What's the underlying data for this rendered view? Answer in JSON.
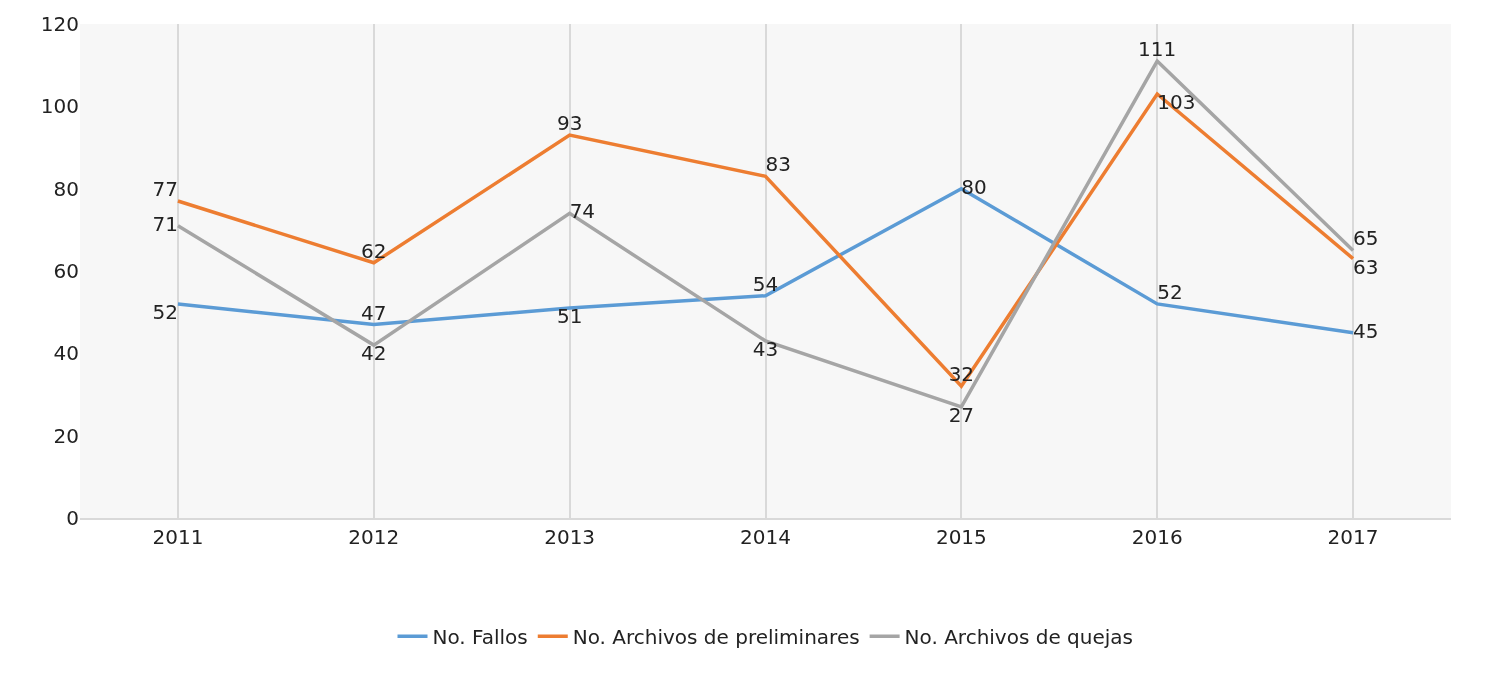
{
  "chart_data": {
    "type": "line",
    "categories": [
      "2011",
      "2012",
      "2013",
      "2014",
      "2015",
      "2016",
      "2017"
    ],
    "series": [
      {
        "name": "No. Fallos",
        "color": "#5b9bd5",
        "values": [
          52,
          47,
          51,
          54,
          80,
          52,
          45
        ]
      },
      {
        "name": "No. Archivos de preliminares",
        "color": "#ed7d31",
        "values": [
          77,
          62,
          93,
          83,
          32,
          103,
          63
        ]
      },
      {
        "name": "No. Archivos de quejas",
        "color": "#a5a5a5",
        "values": [
          71,
          42,
          74,
          43,
          27,
          111,
          65
        ]
      }
    ],
    "ylim": [
      0,
      120
    ],
    "yticks": [
      0,
      20,
      40,
      60,
      80,
      100,
      120
    ],
    "grid": "x",
    "legend": "bottom",
    "marker": "none",
    "line_style": "solid",
    "data_labels": true
  }
}
